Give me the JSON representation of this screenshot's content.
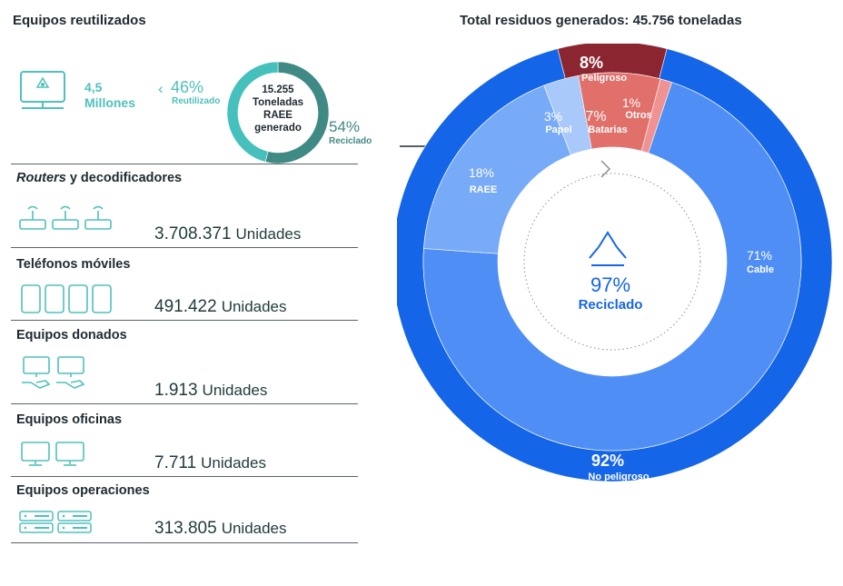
{
  "left": {
    "title": "Equipos reutilizados",
    "reused": {
      "amount": "4,5",
      "amount_unit": "Millones",
      "reutilizado_pct": "46%",
      "reutilizado_label": "Reutilizado",
      "reciclado_pct": "54%",
      "reciclado_label": "Reciclado",
      "donut_line1": "15.255",
      "donut_line2": "Toneladas",
      "donut_line3": "RAEE",
      "donut_line4": "generado"
    },
    "rows": [
      {
        "title_italic": "Routers",
        "title_rest": " y decodificadores",
        "value": "3.708.371",
        "unit": "Unidades",
        "icon": "router-icon"
      },
      {
        "title_italic": "",
        "title_rest": "Teléfonos móviles",
        "value": "491.422",
        "unit": "Unidades",
        "icon": "mobile-phone-icon"
      },
      {
        "title_italic": "",
        "title_rest": "Equipos donados",
        "value": "1.913",
        "unit": "Unidades",
        "icon": "donated-computer-icon"
      },
      {
        "title_italic": "",
        "title_rest": "Equipos oficinas",
        "value": "7.711",
        "unit": "Unidades",
        "icon": "office-monitor-icon"
      },
      {
        "title_italic": "",
        "title_rest": "Equipos operaciones",
        "value": "313.805",
        "unit": "Unidades",
        "icon": "server-rack-icon"
      }
    ]
  },
  "chart_data": [
    {
      "type": "pie",
      "title": "",
      "subtitle": "",
      "slices": [
        {
          "label": "Reutilizado",
          "value": 46,
          "color": "#46c0bc"
        },
        {
          "label": "Reciclado",
          "value": 54,
          "color": "#3f8a84"
        }
      ]
    },
    {
      "type": "pie",
      "title": "Total residuos generados: 45.756 toneladas",
      "rings": {
        "outer": [
          {
            "label": "Peligroso",
            "value": 8,
            "display": "8%",
            "color": "#8b2631"
          },
          {
            "label": "No peligroso",
            "value": 92,
            "display": "92%",
            "color": "#1565e8"
          }
        ],
        "inner": [
          {
            "label": "Batarias",
            "value": 7,
            "display": "7%",
            "color": "#e16f6a"
          },
          {
            "label": "Otros",
            "value": 1,
            "display": "1%",
            "color": "#f19292"
          },
          {
            "label": "Cable",
            "value": 71,
            "display": "71%",
            "color": "#4f8ff5"
          },
          {
            "label": "RAEE",
            "value": 18,
            "display": "18%",
            "color": "#77aaf7"
          },
          {
            "label": "Papel",
            "value": 3,
            "display": "3%",
            "color": "#a9c9fa"
          }
        ]
      },
      "center_value": "97%",
      "center_label": "Reciclado"
    }
  ],
  "colors": {
    "teal": "#46c0bc",
    "dark_teal": "#3f8a84",
    "blue": "#1565e8",
    "red": "#8b2631"
  }
}
